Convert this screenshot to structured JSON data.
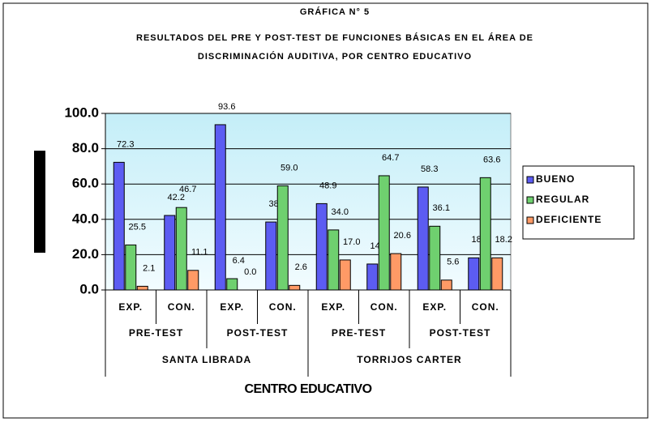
{
  "chart_data": {
    "type": "bar",
    "title_lines": [
      "GRÁFICA N° 5",
      "RESULTADOS DEL PRE Y POST-TEST DE FUNCIONES BÁSICAS EN EL ÁREA DE",
      "DISCRIMINACIÓN AUDITIVA, POR CENTRO EDUCATIVO"
    ],
    "x_label": "CENTRO EDUCATIVO",
    "groups": [
      {
        "name": "SANTA LIBRADA",
        "subgroups": [
          {
            "name": "PRE-TEST",
            "categories": [
              "EXP.",
              "CON."
            ]
          },
          {
            "name": "POST-TEST",
            "categories": [
              "EXP.",
              "CON."
            ]
          }
        ]
      },
      {
        "name": "TORRIJOS CARTER",
        "subgroups": [
          {
            "name": "PRE-TEST",
            "categories": [
              "EXP.",
              "CON."
            ]
          },
          {
            "name": "POST-TEST",
            "categories": [
              "EXP.",
              "CON."
            ]
          }
        ]
      }
    ],
    "series": [
      {
        "name": "BUENO",
        "color": "#5c5cf2",
        "values": [
          72.3,
          42.2,
          93.6,
          38.5,
          48.9,
          14.7,
          58.3,
          18.2
        ],
        "value_labels": [
          "72.3",
          "42.2",
          "93.6",
          "38.5",
          "48.9",
          "14.7",
          "58.3",
          "18.2"
        ]
      },
      {
        "name": "REGULAR",
        "color": "#6fd06f",
        "values": [
          25.5,
          46.7,
          6.4,
          59.0,
          34.0,
          64.7,
          36.1,
          63.6
        ],
        "value_labels": [
          "25.5",
          "46.7",
          "6.4",
          "59.0",
          "34.0",
          "64.7",
          "36.1",
          "63.6"
        ]
      },
      {
        "name": "DEFICIENTE",
        "color": "#ff9a66",
        "values": [
          2.1,
          11.1,
          0.0,
          2.6,
          17.0,
          20.6,
          5.6,
          18.2
        ],
        "value_labels": [
          "2.1",
          "11.1",
          "0.0",
          "2.6",
          "17.0",
          "20.6",
          "5.6",
          "18.2"
        ]
      }
    ],
    "ylim": [
      0,
      100
    ],
    "yticks": [
      {
        "value": 0,
        "label": "0.0"
      },
      {
        "value": 20,
        "label": "20.0"
      },
      {
        "value": 40,
        "label": "40.0"
      },
      {
        "value": 60,
        "label": "60.0"
      },
      {
        "value": 80,
        "label": "80.0"
      },
      {
        "value": 100,
        "label": "100.0"
      }
    ],
    "grid": true,
    "legend": "right"
  }
}
